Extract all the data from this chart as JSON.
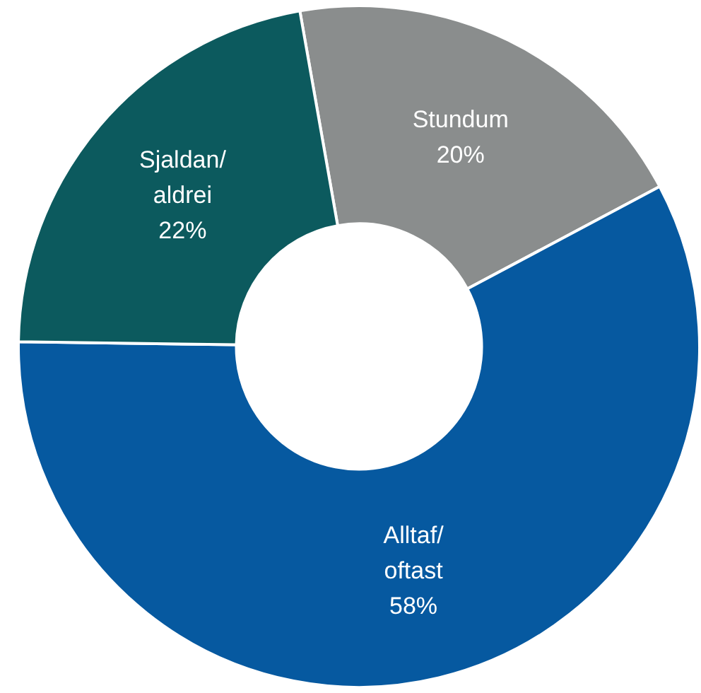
{
  "chart_data": {
    "type": "donut",
    "categories": [
      "Stundum",
      "Alltaf/oftast",
      "Sjaldan/aldrei"
    ],
    "values": [
      20,
      58,
      22
    ],
    "colors": [
      "#8a8d8d",
      "#0659a0",
      "#0c5a5e"
    ],
    "value_labels": [
      "20%",
      "58%",
      "22%"
    ],
    "legend": false
  }
}
